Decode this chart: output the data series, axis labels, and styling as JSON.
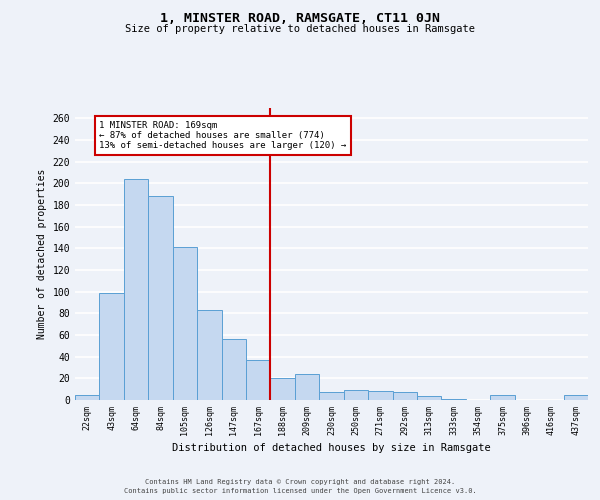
{
  "title": "1, MINSTER ROAD, RAMSGATE, CT11 0JN",
  "subtitle": "Size of property relative to detached houses in Ramsgate",
  "xlabel": "Distribution of detached houses by size in Ramsgate",
  "ylabel": "Number of detached properties",
  "categories": [
    "22sqm",
    "43sqm",
    "64sqm",
    "84sqm",
    "105sqm",
    "126sqm",
    "147sqm",
    "167sqm",
    "188sqm",
    "209sqm",
    "230sqm",
    "250sqm",
    "271sqm",
    "292sqm",
    "313sqm",
    "333sqm",
    "354sqm",
    "375sqm",
    "396sqm",
    "416sqm",
    "437sqm"
  ],
  "values": [
    5,
    99,
    204,
    188,
    141,
    83,
    56,
    37,
    20,
    24,
    7,
    9,
    8,
    7,
    4,
    1,
    0,
    5,
    0,
    0,
    5
  ],
  "bar_color": "#c5d8f0",
  "bar_edge_color": "#5a9fd4",
  "vline_x_index": 7,
  "vline_color": "#cc0000",
  "annotation_text": "1 MINSTER ROAD: 169sqm\n← 87% of detached houses are smaller (774)\n13% of semi-detached houses are larger (120) →",
  "annotation_box_color": "#ffffff",
  "annotation_box_edge_color": "#cc0000",
  "ylim": [
    0,
    270
  ],
  "yticks": [
    0,
    20,
    40,
    60,
    80,
    100,
    120,
    140,
    160,
    180,
    200,
    220,
    240,
    260
  ],
  "background_color": "#eef2f9",
  "grid_color": "#ffffff",
  "footer_line1": "Contains HM Land Registry data © Crown copyright and database right 2024.",
  "footer_line2": "Contains public sector information licensed under the Open Government Licence v3.0."
}
